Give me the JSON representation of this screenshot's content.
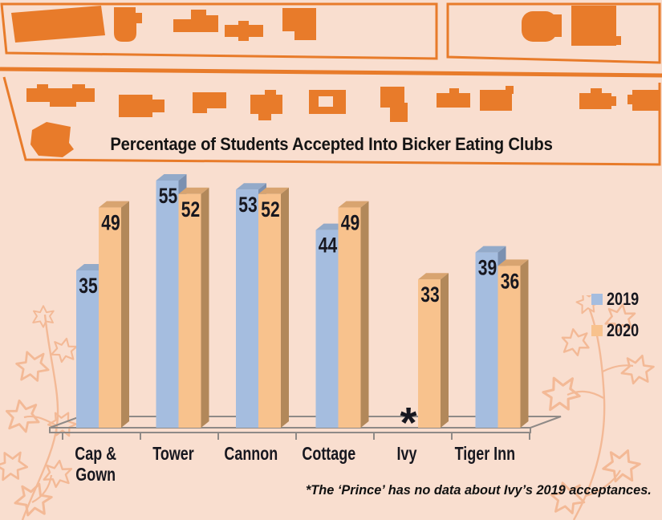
{
  "title": "Percentage of Students Accepted Into Bicker Eating Clubs",
  "footnote": "*The ‘Prince’ has no data about Ivy’s 2019 acceptances.",
  "no_data_marker": "*",
  "colors": {
    "background": "#f9decf",
    "accent_orange": "#e87b2a",
    "axis_gray": "#8f8a87",
    "text_dark": "#17171f",
    "vine": "#f3b996",
    "series": [
      {
        "name": "2019",
        "front": "#a5bddf",
        "top": "#93aac9",
        "side": "#7b90b0"
      },
      {
        "name": "2020",
        "front": "#f8c28d",
        "top": "#d8a470",
        "side": "#b2885a"
      }
    ]
  },
  "chart_data": {
    "type": "bar",
    "title": "Percentage of Students Accepted Into Bicker Eating Clubs",
    "categories": [
      "Cap &\nGown",
      "Tower",
      "Cannon",
      "Cottage",
      "Ivy",
      "Tiger Inn"
    ],
    "series": [
      {
        "name": "2019",
        "values": [
          35,
          55,
          53,
          44,
          null,
          39
        ]
      },
      {
        "name": "2020",
        "values": [
          49,
          52,
          52,
          49,
          33,
          36
        ]
      }
    ],
    "xlabel": "",
    "ylabel": "",
    "ylim": [
      0,
      60
    ],
    "grid": false,
    "legend_position": "right",
    "value_labels": true,
    "missing_value_note": "Ivy 2019 shown as asterisk (no data)"
  }
}
